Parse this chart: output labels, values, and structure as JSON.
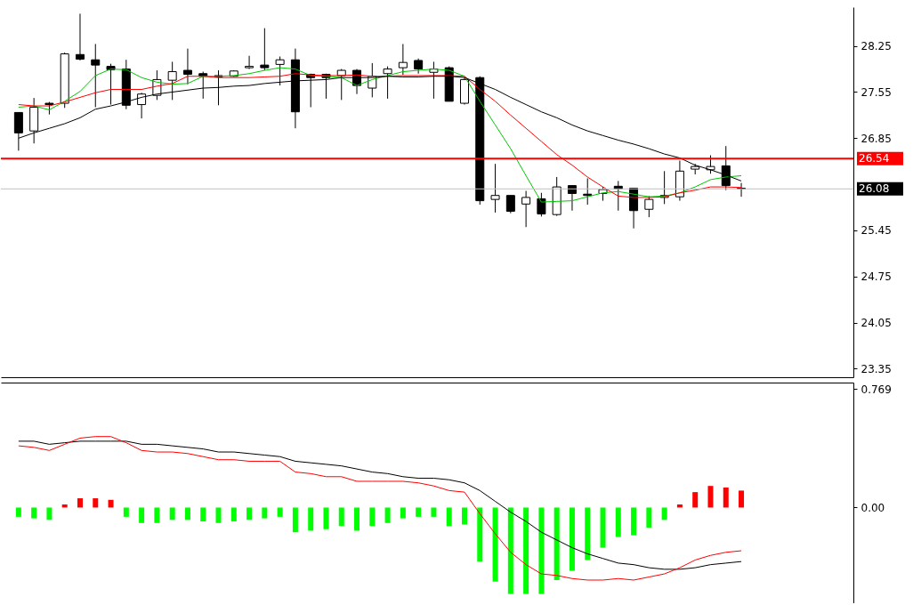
{
  "chart_data": [
    {
      "type": "candlestick",
      "categories": [
        null,
        null,
        null,
        null,
        null,
        null,
        null,
        null,
        null,
        null,
        null,
        null,
        null,
        null,
        null,
        null,
        null,
        null,
        null,
        null,
        null,
        null,
        null,
        null,
        null,
        null,
        null,
        null,
        null,
        null,
        null,
        null,
        null,
        null,
        null,
        null,
        null,
        null,
        null,
        null,
        null,
        null,
        null,
        null,
        null,
        null,
        null,
        null
      ],
      "ohlc": [
        [
          27.24,
          27.24,
          26.66,
          26.93
        ],
        [
          26.96,
          27.46,
          26.77,
          27.32
        ],
        [
          27.38,
          27.4,
          27.21,
          27.36
        ],
        [
          27.38,
          28.15,
          27.31,
          28.13
        ],
        [
          28.12,
          28.74,
          28.03,
          28.05
        ],
        [
          28.04,
          28.28,
          27.32,
          27.96
        ],
        [
          27.94,
          27.98,
          27.36,
          27.89
        ],
        [
          27.9,
          28.04,
          27.29,
          27.35
        ],
        [
          27.36,
          27.54,
          27.15,
          27.52
        ],
        [
          27.5,
          27.88,
          27.43,
          27.74
        ],
        [
          27.73,
          28.01,
          27.43,
          27.86
        ],
        [
          27.88,
          28.21,
          27.67,
          27.82
        ],
        [
          27.83,
          27.86,
          27.45,
          27.79
        ],
        [
          27.8,
          27.88,
          27.35,
          27.78
        ],
        [
          27.79,
          27.88,
          27.78,
          27.87
        ],
        [
          27.92,
          28.1,
          27.9,
          27.94
        ],
        [
          27.96,
          28.52,
          27.88,
          27.92
        ],
        [
          27.97,
          28.09,
          27.65,
          28.04
        ],
        [
          28.04,
          28.21,
          27.0,
          27.25
        ],
        [
          27.82,
          27.83,
          27.32,
          27.77
        ],
        [
          27.82,
          27.83,
          27.45,
          27.77
        ],
        [
          27.8,
          27.9,
          27.43,
          27.88
        ],
        [
          27.88,
          27.9,
          27.52,
          27.65
        ],
        [
          27.61,
          27.99,
          27.47,
          27.79
        ],
        [
          27.83,
          27.94,
          27.45,
          27.9
        ],
        [
          27.92,
          28.28,
          27.81,
          28.0
        ],
        [
          28.03,
          28.06,
          27.83,
          27.9
        ],
        [
          27.85,
          28.01,
          27.45,
          27.9
        ],
        [
          27.92,
          27.94,
          27.41,
          27.41
        ],
        [
          27.38,
          27.77,
          27.36,
          27.74
        ],
        [
          27.77,
          27.79,
          25.84,
          25.9
        ],
        [
          25.92,
          26.46,
          25.72,
          25.98
        ],
        [
          25.98,
          25.98,
          25.71,
          25.74
        ],
        [
          25.85,
          26.05,
          25.5,
          25.95
        ],
        [
          25.93,
          26.02,
          25.66,
          25.7
        ],
        [
          25.69,
          26.26,
          25.67,
          26.11
        ],
        [
          26.13,
          26.13,
          25.75,
          26.01
        ],
        [
          26.0,
          26.24,
          25.84,
          25.98
        ],
        [
          26.01,
          26.11,
          25.9,
          26.07
        ],
        [
          26.12,
          26.2,
          25.75,
          26.08
        ],
        [
          26.09,
          26.09,
          25.48,
          25.75
        ],
        [
          25.77,
          25.97,
          25.65,
          25.92
        ],
        [
          25.95,
          26.35,
          25.85,
          25.98
        ],
        [
          25.96,
          26.51,
          25.9,
          26.35
        ],
        [
          26.38,
          26.46,
          26.3,
          26.42
        ],
        [
          26.37,
          26.59,
          26.31,
          26.42
        ],
        [
          26.43,
          26.73,
          26.06,
          26.13
        ],
        [
          26.09,
          26.17,
          25.96,
          26.08
        ]
      ],
      "series": [
        {
          "type": "line",
          "color": "#00c800",
          "values": [
            27.32,
            27.34,
            27.28,
            27.41,
            27.56,
            27.8,
            27.9,
            27.89,
            27.77,
            27.7,
            27.67,
            27.68,
            27.79,
            27.79,
            27.8,
            27.83,
            27.88,
            27.92,
            27.9,
            27.8,
            27.79,
            27.77,
            27.65,
            27.74,
            27.8,
            27.86,
            27.88,
            27.9,
            27.88,
            27.79,
            27.41,
            27.05,
            26.69,
            26.28,
            25.88,
            25.89,
            25.9,
            25.96,
            26.02,
            26.04,
            26.0,
            25.96,
            25.97,
            26.02,
            26.11,
            26.22,
            26.26,
            26.28
          ]
        },
        {
          "type": "line",
          "color": "#ff0000",
          "values": [
            27.36,
            27.34,
            27.34,
            27.4,
            27.47,
            27.54,
            27.59,
            27.59,
            27.59,
            27.64,
            27.68,
            27.79,
            27.79,
            27.77,
            27.77,
            27.77,
            27.78,
            27.79,
            27.83,
            27.81,
            27.8,
            27.8,
            27.81,
            27.79,
            27.79,
            27.8,
            27.8,
            27.8,
            27.8,
            27.79,
            27.59,
            27.41,
            27.2,
            27.0,
            26.8,
            26.6,
            26.44,
            26.26,
            26.11,
            25.97,
            25.95,
            25.95,
            25.96,
            26.02,
            26.06,
            26.11,
            26.11,
            26.1
          ]
        },
        {
          "type": "line",
          "color": "#000000",
          "values": [
            26.85,
            26.93,
            27.0,
            27.07,
            27.16,
            27.29,
            27.34,
            27.4,
            27.47,
            27.52,
            27.55,
            27.58,
            27.61,
            27.62,
            27.64,
            27.65,
            27.68,
            27.7,
            27.72,
            27.73,
            27.74,
            27.77,
            27.77,
            27.77,
            27.79,
            27.78,
            27.78,
            27.79,
            27.79,
            27.77,
            27.68,
            27.59,
            27.47,
            27.36,
            27.25,
            27.16,
            27.05,
            26.96,
            26.89,
            26.82,
            26.76,
            26.69,
            26.61,
            26.55,
            26.44,
            26.37,
            26.29,
            26.2
          ]
        }
      ],
      "ylim": [
        23.22,
        28.84
      ],
      "yticks": [
        23.35,
        24.05,
        24.75,
        25.45,
        26.85,
        27.55,
        28.25
      ],
      "ref_lines": [
        {
          "axis": "y",
          "value": 26.54,
          "label": "26.54",
          "color": "#ff0000"
        },
        {
          "axis": "y",
          "value": 26.08,
          "label": "26.08",
          "color": "#c0c0c0"
        }
      ]
    },
    {
      "type": "line",
      "categories": [
        null,
        null,
        null,
        null,
        null,
        null,
        null,
        null,
        null,
        null,
        null,
        null,
        null,
        null,
        null,
        null,
        null,
        null,
        null,
        null,
        null,
        null,
        null,
        null,
        null,
        null,
        null,
        null,
        null,
        null,
        null,
        null,
        null,
        null,
        null,
        null,
        null,
        null,
        null,
        null,
        null,
        null,
        null,
        null,
        null,
        null,
        null,
        null
      ],
      "series": [
        {
          "type": "bar",
          "color": "#00ff00",
          "values": [
            -0.06,
            -0.07,
            -0.08,
            null,
            null,
            null,
            null,
            -0.06,
            -0.1,
            -0.1,
            -0.08,
            -0.08,
            -0.09,
            -0.1,
            -0.09,
            -0.08,
            -0.07,
            -0.06,
            -0.16,
            -0.15,
            -0.14,
            -0.12,
            -0.15,
            -0.12,
            -0.1,
            -0.07,
            -0.06,
            -0.06,
            -0.12,
            -0.11,
            -0.35,
            -0.48,
            -0.56,
            -0.56,
            -0.56,
            -0.47,
            -0.41,
            -0.34,
            -0.26,
            -0.19,
            -0.18,
            -0.13,
            -0.08,
            null,
            null,
            null,
            null,
            null
          ]
        },
        {
          "type": "bar",
          "color": "#ff0000",
          "values": [
            null,
            null,
            null,
            0.02,
            0.06,
            0.06,
            0.05,
            null,
            null,
            null,
            null,
            null,
            null,
            null,
            null,
            null,
            null,
            null,
            null,
            null,
            null,
            null,
            null,
            null,
            null,
            null,
            null,
            null,
            null,
            null,
            null,
            null,
            null,
            null,
            null,
            null,
            null,
            null,
            null,
            null,
            null,
            null,
            null,
            0.02,
            0.1,
            0.14,
            0.13,
            0.11
          ]
        },
        {
          "type": "line",
          "color": "#000000",
          "values": [
            0.43,
            0.43,
            0.41,
            0.42,
            0.43,
            0.43,
            0.43,
            0.43,
            0.41,
            0.41,
            0.4,
            0.39,
            0.38,
            0.36,
            0.36,
            0.35,
            0.34,
            0.33,
            0.3,
            0.29,
            0.28,
            0.27,
            0.25,
            0.23,
            0.22,
            0.2,
            0.19,
            0.19,
            0.18,
            0.16,
            0.11,
            0.04,
            -0.03,
            -0.09,
            -0.16,
            -0.21,
            -0.26,
            -0.3,
            -0.33,
            -0.36,
            -0.37,
            -0.39,
            -0.4,
            -0.4,
            -0.39,
            -0.37,
            -0.36,
            -0.35
          ]
        },
        {
          "type": "line",
          "color": "#ff0000",
          "values": [
            0.4,
            0.39,
            0.37,
            0.41,
            0.45,
            0.46,
            0.46,
            0.42,
            0.37,
            0.36,
            0.36,
            0.35,
            0.33,
            0.31,
            0.31,
            0.3,
            0.3,
            0.3,
            0.23,
            0.22,
            0.2,
            0.2,
            0.17,
            0.17,
            0.17,
            0.17,
            0.16,
            0.14,
            0.11,
            0.1,
            -0.04,
            -0.17,
            -0.29,
            -0.37,
            -0.43,
            -0.44,
            -0.46,
            -0.47,
            -0.47,
            -0.46,
            -0.47,
            -0.45,
            -0.43,
            -0.39,
            -0.34,
            -0.31,
            -0.29,
            -0.28
          ]
        }
      ],
      "ylim": [
        -0.62,
        0.81
      ],
      "yticks": [
        {
          "value": 0,
          "label": "0.00"
        },
        0.769
      ]
    }
  ]
}
